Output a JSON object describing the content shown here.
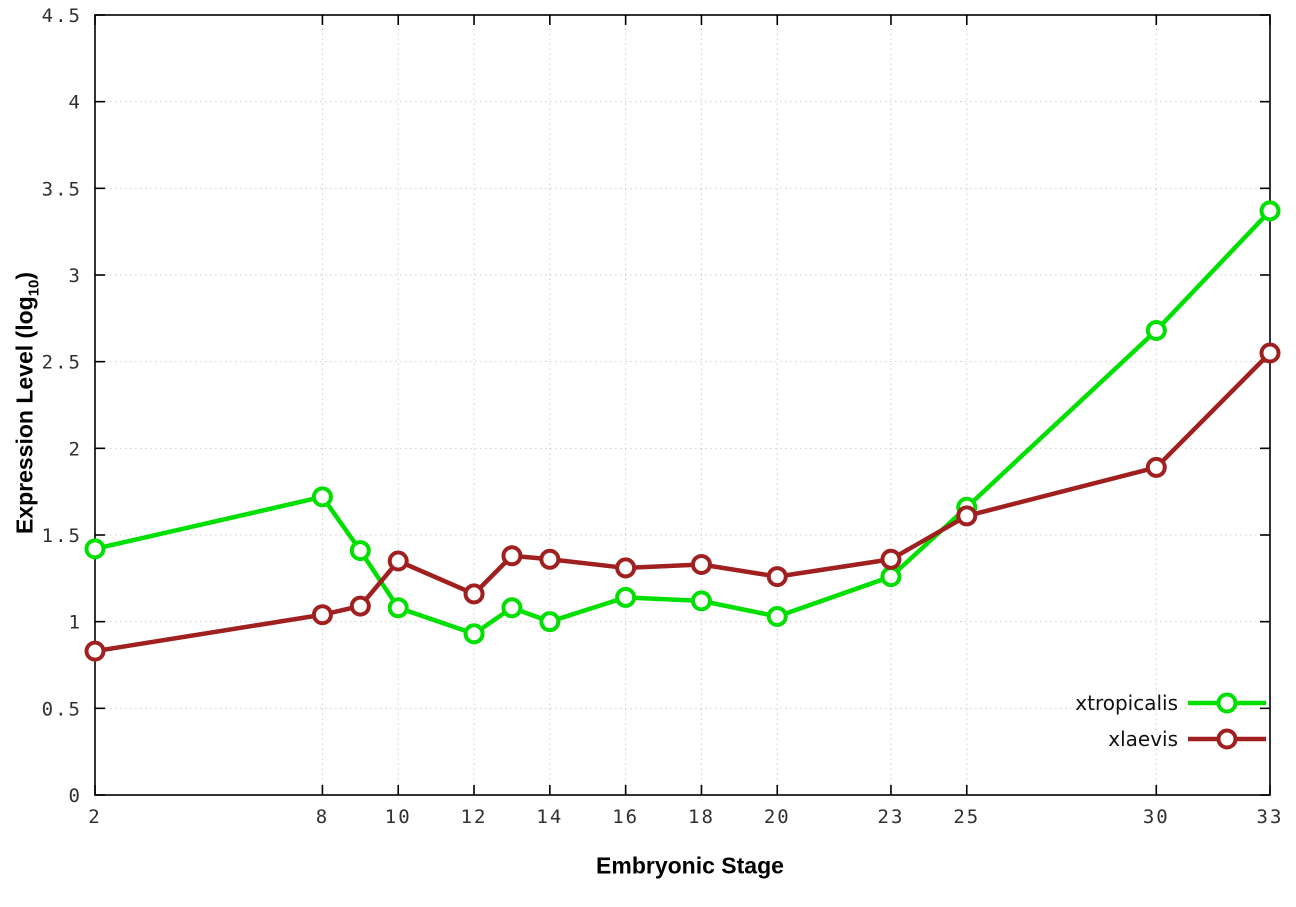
{
  "labels": {
    "xlabel": "Embryonic Stage",
    "ylabel_prefix": "Expression Level (log",
    "ylabel_sub": "10",
    "ylabel_suffix": ")"
  },
  "chart_data": {
    "type": "line",
    "title": "",
    "xlabel": "Embryonic Stage",
    "ylabel": "Expression Level (log10)",
    "x": [
      2,
      8,
      9,
      10,
      12,
      13,
      14,
      16,
      18,
      20,
      23,
      25,
      30,
      33
    ],
    "series": [
      {
        "name": "xtropicalis",
        "color": "#00e000",
        "values": [
          1.42,
          1.72,
          1.41,
          1.08,
          0.93,
          1.08,
          1.0,
          1.14,
          1.12,
          1.03,
          1.26,
          1.66,
          2.68,
          3.37
        ]
      },
      {
        "name": "xlaevis",
        "color": "#a02020",
        "values": [
          0.83,
          1.04,
          1.09,
          1.35,
          1.16,
          1.38,
          1.36,
          1.31,
          1.33,
          1.26,
          1.36,
          1.61,
          1.89,
          2.55
        ]
      }
    ],
    "xlim": [
      2,
      33
    ],
    "ylim": [
      0,
      4.5
    ],
    "xticks": [
      2,
      8,
      10,
      12,
      14,
      16,
      18,
      20,
      23,
      25,
      30,
      33
    ],
    "yticks": [
      0,
      0.5,
      1,
      1.5,
      2,
      2.5,
      3,
      3.5,
      4,
      4.5
    ],
    "grid": true,
    "grid_color": "#cccccc",
    "marker": "open-circle",
    "legend_position": "bottom-right"
  }
}
